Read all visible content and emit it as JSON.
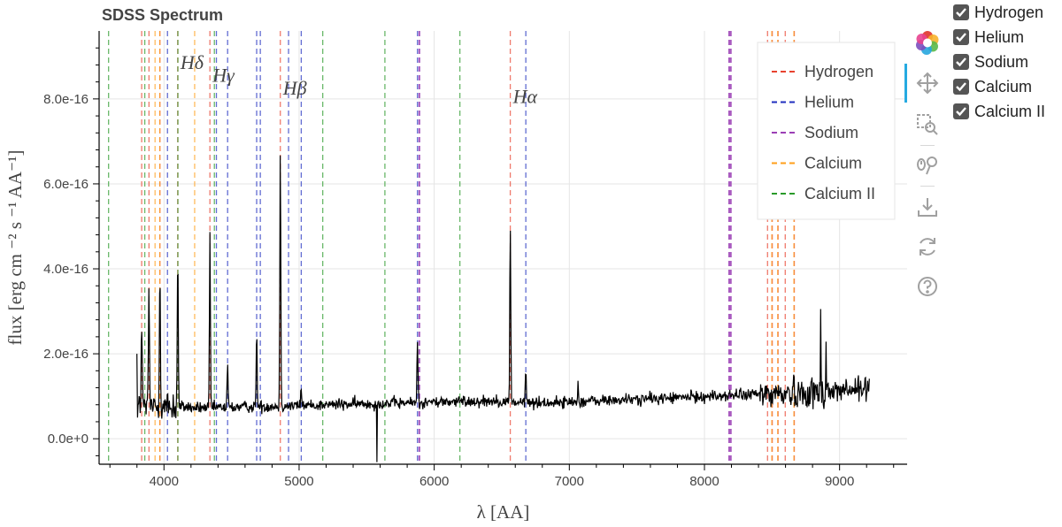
{
  "chart_data": {
    "type": "line",
    "title": "SDSS Spectrum",
    "xlabel": "λ [AA]",
    "ylabel": "flux [erg cm ⁻² s ⁻¹ AA⁻¹]",
    "xlim": [
      3520,
      9500
    ],
    "ylim": [
      -6e-17,
      9.6e-16
    ],
    "x_ticks": [
      4000,
      5000,
      6000,
      7000,
      8000,
      9000
    ],
    "x_tick_labels": [
      "4000",
      "5000",
      "6000",
      "7000",
      "8000",
      "9000"
    ],
    "y_ticks": [
      0,
      2e-16,
      4e-16,
      6e-16,
      8e-16
    ],
    "y_tick_labels": [
      "0.0e+0",
      "2.0e-16",
      "4.0e-16",
      "6.0e-16",
      "8.0e-16"
    ],
    "grid": true,
    "legend_position": "top-right",
    "spectrum_color": "#000000",
    "spectrum_peaks": [
      {
        "x": 3835,
        "y": 2.8e-16
      },
      {
        "x": 3889,
        "y": 3.6e-16
      },
      {
        "x": 3970,
        "y": 4.3e-16
      },
      {
        "x": 4102,
        "y": 4.4e-16
      },
      {
        "x": 4340,
        "y": 4.7e-16
      },
      {
        "x": 4471,
        "y": 1.7e-16
      },
      {
        "x": 4686,
        "y": 2.5e-16
      },
      {
        "x": 4861,
        "y": 6.85e-16
      },
      {
        "x": 5016,
        "y": 1.2e-16
      },
      {
        "x": 5876,
        "y": 2.4e-16
      },
      {
        "x": 6563,
        "y": 5e-16
      },
      {
        "x": 6678,
        "y": 1.6e-16
      },
      {
        "x": 7065,
        "y": 1.3e-16
      },
      {
        "x": 8860,
        "y": 2.8e-16
      },
      {
        "x": 8900,
        "y": 2.2e-16
      }
    ],
    "spectrum_features": [
      {
        "x": 5577,
        "y": -5.5e-17
      }
    ],
    "line_groups": [
      {
        "name": "Hydrogen",
        "color": "#e8422e",
        "x": [
          3835,
          3889,
          3970,
          4102,
          4340,
          4861,
          6563,
          8467,
          8502,
          8545,
          8598,
          8665
        ]
      },
      {
        "name": "Helium",
        "color": "#1f2fbf",
        "x": [
          4026,
          4388,
          4471,
          4686,
          4713,
          4922,
          5016,
          5876,
          6678
        ]
      },
      {
        "name": "Sodium",
        "color": "#9b3fb5",
        "x": [
          5890,
          8183,
          8195
        ]
      },
      {
        "name": "Calcium",
        "color": "#ff9f1a",
        "x": [
          3934,
          3969,
          4227,
          8498,
          8542,
          8662
        ]
      },
      {
        "name": "Calcium II",
        "color": "#2a9a2a",
        "x": [
          3590,
          3858,
          4103,
          4373,
          5175,
          5635,
          6190
        ]
      }
    ],
    "line_labels": [
      {
        "x": 4102,
        "y": 8.7e-16,
        "text": "Hδ"
      },
      {
        "x": 4340,
        "y": 8.4e-16,
        "text": "Hγ"
      },
      {
        "x": 4861,
        "y": 8.1e-16,
        "text": "Hβ"
      },
      {
        "x": 6563,
        "y": 7.9e-16,
        "text": "Hα"
      }
    ]
  },
  "checkboxes": [
    {
      "label": "Hydrogen",
      "checked": true
    },
    {
      "label": "Helium",
      "checked": true
    },
    {
      "label": "Sodium",
      "checked": true
    },
    {
      "label": "Calcium",
      "checked": true
    },
    {
      "label": "Calcium II",
      "checked": true
    }
  ],
  "toolbar": {
    "icons": [
      "bokeh-logo-icon",
      "pan-icon",
      "box-zoom-icon",
      "wheel-zoom-icon",
      "save-icon",
      "reset-icon",
      "help-icon"
    ],
    "active": "pan-icon"
  }
}
